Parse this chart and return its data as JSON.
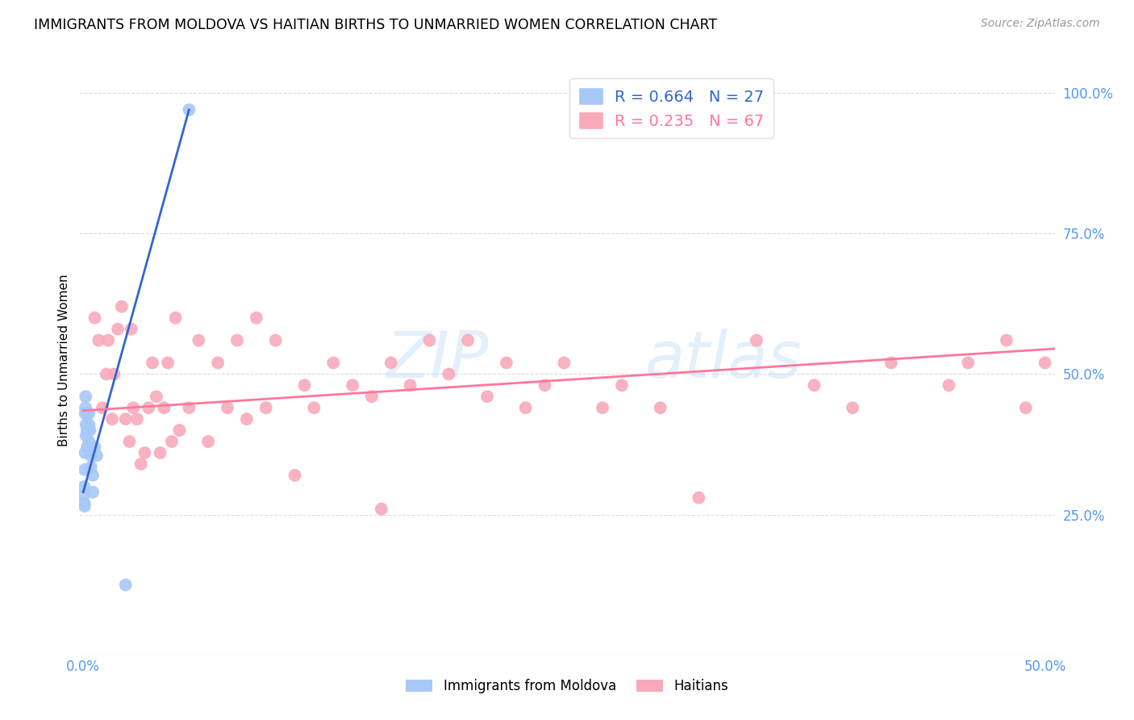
{
  "title": "IMMIGRANTS FROM MOLDOVA VS HAITIAN BIRTHS TO UNMARRIED WOMEN CORRELATION CHART",
  "source": "Source: ZipAtlas.com",
  "ylabel": "Births to Unmarried Women",
  "xlim": [
    -0.002,
    0.505
  ],
  "ylim": [
    0.0,
    1.05
  ],
  "xtick_positions": [
    0.0,
    0.5
  ],
  "xtick_labels": [
    "0.0%",
    "50.0%"
  ],
  "ytick_positions": [
    0.25,
    0.5,
    0.75,
    1.0
  ],
  "ytick_labels": [
    "25.0%",
    "50.0%",
    "75.0%",
    "100.0%"
  ],
  "legend_line1": "R = 0.664   N = 27",
  "legend_line2": "R = 0.235   N = 67",
  "blue_dot_color": "#A8C8F8",
  "pink_dot_color": "#F8AABB",
  "blue_line_color": "#3366CC",
  "pink_line_color": "#FF7799",
  "grid_color": "#DDDDDD",
  "watermark_color": "#C8E0F8",
  "blue_dots_x": [
    0.0003,
    0.0005,
    0.0006,
    0.0007,
    0.0008,
    0.001,
    0.001,
    0.0012,
    0.0013,
    0.0015,
    0.0015,
    0.002,
    0.002,
    0.002,
    0.0025,
    0.003,
    0.003,
    0.003,
    0.0035,
    0.004,
    0.004,
    0.005,
    0.005,
    0.006,
    0.007,
    0.022,
    0.055
  ],
  "blue_dots_y": [
    0.285,
    0.3,
    0.27,
    0.265,
    0.33,
    0.36,
    0.43,
    0.44,
    0.46,
    0.41,
    0.39,
    0.37,
    0.4,
    0.43,
    0.4,
    0.38,
    0.41,
    0.43,
    0.4,
    0.355,
    0.335,
    0.32,
    0.29,
    0.37,
    0.355,
    0.125,
    0.97
  ],
  "pink_dots_x": [
    0.006,
    0.008,
    0.01,
    0.012,
    0.013,
    0.015,
    0.016,
    0.018,
    0.02,
    0.022,
    0.024,
    0.025,
    0.026,
    0.028,
    0.03,
    0.032,
    0.034,
    0.036,
    0.038,
    0.04,
    0.042,
    0.044,
    0.046,
    0.048,
    0.05,
    0.055,
    0.06,
    0.065,
    0.07,
    0.075,
    0.08,
    0.085,
    0.09,
    0.095,
    0.1,
    0.11,
    0.115,
    0.12,
    0.13,
    0.14,
    0.15,
    0.155,
    0.16,
    0.17,
    0.18,
    0.19,
    0.2,
    0.21,
    0.22,
    0.23,
    0.24,
    0.25,
    0.27,
    0.28,
    0.3,
    0.32,
    0.35,
    0.38,
    0.4,
    0.42,
    0.45,
    0.46,
    0.48,
    0.49,
    0.5,
    0.52,
    0.55
  ],
  "pink_dots_y": [
    0.6,
    0.56,
    0.44,
    0.5,
    0.56,
    0.42,
    0.5,
    0.58,
    0.62,
    0.42,
    0.38,
    0.58,
    0.44,
    0.42,
    0.34,
    0.36,
    0.44,
    0.52,
    0.46,
    0.36,
    0.44,
    0.52,
    0.38,
    0.6,
    0.4,
    0.44,
    0.56,
    0.38,
    0.52,
    0.44,
    0.56,
    0.42,
    0.6,
    0.44,
    0.56,
    0.32,
    0.48,
    0.44,
    0.52,
    0.48,
    0.46,
    0.26,
    0.52,
    0.48,
    0.56,
    0.5,
    0.56,
    0.46,
    0.52,
    0.44,
    0.48,
    0.52,
    0.44,
    0.48,
    0.44,
    0.28,
    0.56,
    0.48,
    0.44,
    0.52,
    0.48,
    0.52,
    0.56,
    0.44,
    0.52,
    0.56,
    0.44
  ],
  "blue_line_x0": 0.0,
  "blue_line_y0": 0.29,
  "blue_line_x1": 0.055,
  "blue_line_y1": 0.97,
  "pink_line_x0": 0.0,
  "pink_line_y0": 0.435,
  "pink_line_x1": 0.505,
  "pink_line_y1": 0.545
}
